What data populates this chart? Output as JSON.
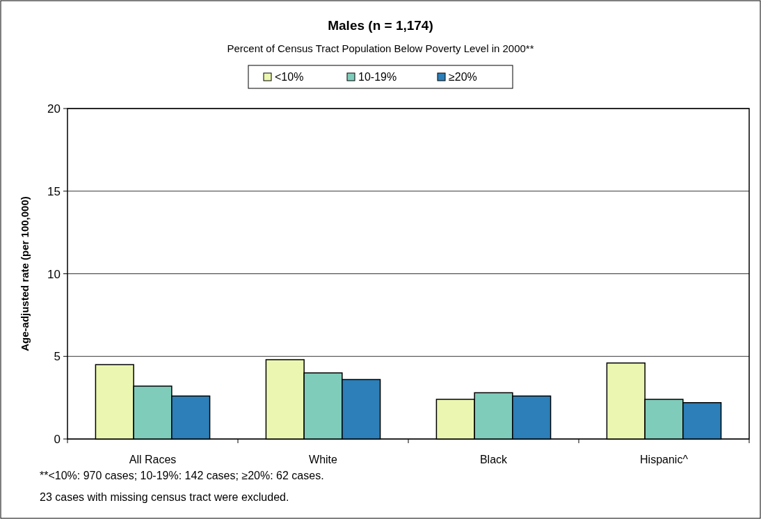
{
  "chart_data": {
    "type": "bar",
    "title": "Males  (n = 1,174)",
    "subtitle": "Percent of Census Tract Population Below  Poverty Level in 2000**",
    "ylabel": "Age-adjusted rate (per 100,000)",
    "categories": [
      "All Races",
      "White",
      "Black",
      "Hispanic^"
    ],
    "series": [
      {
        "name": "<10%",
        "color": "#ebf7b0",
        "values": [
          4.5,
          4.8,
          2.4,
          4.6
        ]
      },
      {
        "name": "10-19%",
        "color": "#7fccbb",
        "values": [
          3.2,
          4.0,
          2.8,
          2.4
        ]
      },
      {
        "name": "≥20%",
        "color": "#2c7fb8",
        "values": [
          2.6,
          3.6,
          2.6,
          2.2
        ]
      }
    ],
    "ylim": [
      0,
      20
    ],
    "yticks": [
      0,
      5,
      10,
      15,
      20
    ],
    "grid": "y",
    "legend": "top",
    "annotations": [
      "**<10%: 970 cases; 10-19%: 142 cases; ≥20%: 62 cases.",
      "23 cases with missing census tract were excluded."
    ]
  }
}
